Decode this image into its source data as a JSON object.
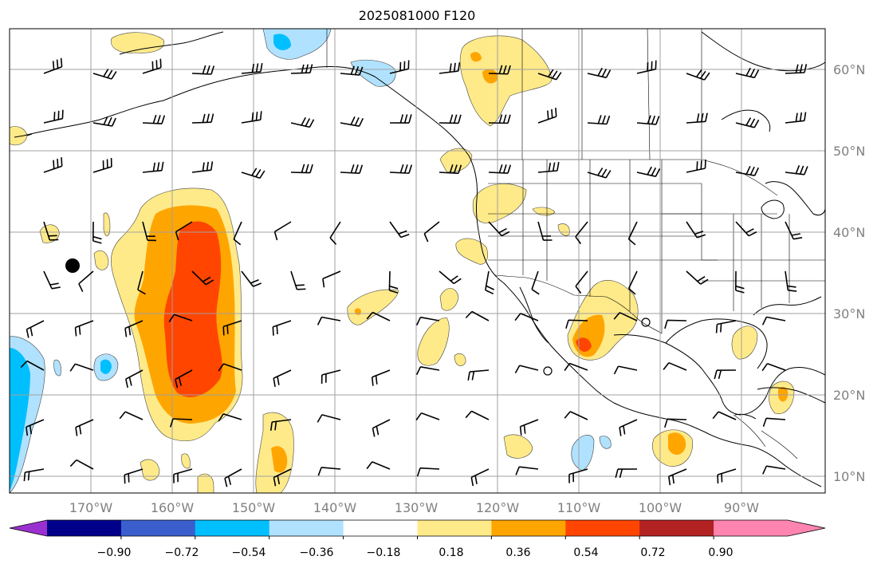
{
  "title": "2025081000 F120",
  "lat_labels": [
    "60°N",
    "50°N",
    "40°N",
    "30°N",
    "20°N",
    "10°N"
  ],
  "lon_labels": [
    "170°W",
    "160°W",
    "150°W",
    "140°W",
    "130°W",
    "120°W",
    "110°W",
    "100°W",
    "90°W"
  ],
  "colorbar": {
    "ticks": [
      "−0.90",
      "−0.72",
      "−0.54",
      "−0.36",
      "−0.18",
      "0.18",
      "0.36",
      "0.54",
      "0.72",
      "0.90"
    ],
    "colors": [
      "#9b30d0",
      "#00008b",
      "#3a5fcd",
      "#00bfff",
      "#b0e2ff",
      "#ffffff",
      "#ffea8a",
      "#ffa500",
      "#ff4500",
      "#b22222",
      "#ff85b0",
      "#ff85b0"
    ]
  },
  "fill_colors": {
    "light_yellow": "#ffea8a",
    "orange": "#ffa500",
    "red_orange": "#ff4500",
    "light_blue": "#b0e2ff",
    "deep_sky_blue": "#00bfff"
  }
}
